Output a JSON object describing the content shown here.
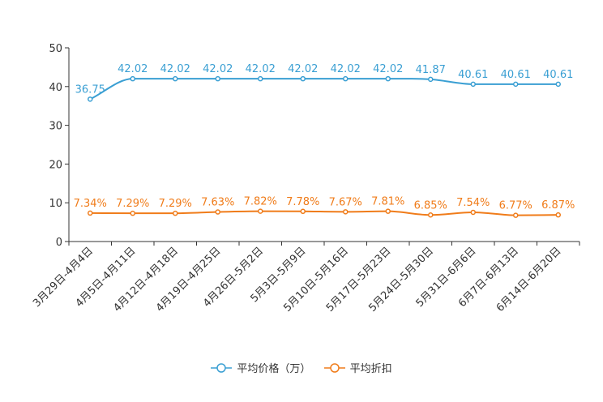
{
  "chart_data": {
    "type": "line",
    "categories": [
      "3月29日-4月4日",
      "4月5日-4月11日",
      "4月12日-4月18日",
      "4月19日-4月25日",
      "4月26日-5月2日",
      "5月3日-5月9日",
      "5月10日-5月16日",
      "5月17日-5月23日",
      "5月24日-5月30日",
      "5月31日-6月6日",
      "6月7日-6月13日",
      "6月14日-6月20日"
    ],
    "series": [
      {
        "name": "平均价格（万）",
        "color": "#3a9fd3",
        "values": [
          36.75,
          42.02,
          42.02,
          42.02,
          42.02,
          42.02,
          42.02,
          42.02,
          41.87,
          40.61,
          40.61,
          40.61
        ],
        "labels": [
          "36.75",
          "42.02",
          "42.02",
          "42.02",
          "42.02",
          "42.02",
          "42.02",
          "42.02",
          "41.87",
          "40.61",
          "40.61",
          "40.61"
        ]
      },
      {
        "name": "平均折扣",
        "color": "#f07c1a",
        "values": [
          7.34,
          7.29,
          7.29,
          7.63,
          7.82,
          7.78,
          7.67,
          7.81,
          6.85,
          7.54,
          6.77,
          6.87
        ],
        "labels": [
          "7.34%",
          "7.29%",
          "7.29%",
          "7.63%",
          "7.82%",
          "7.78%",
          "7.67%",
          "7.81%",
          "6.85%",
          "7.54%",
          "6.77%",
          "6.87%"
        ]
      }
    ],
    "y_ticks": [
      "0",
      "10",
      "20",
      "30",
      "40",
      "50"
    ],
    "ylim": [
      0,
      50
    ],
    "title": "",
    "xlabel": "",
    "ylabel": "",
    "grid": false,
    "legend_position": "bottom-center"
  }
}
